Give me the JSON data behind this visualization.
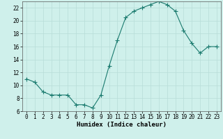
{
  "x": [
    0,
    1,
    2,
    3,
    4,
    5,
    6,
    7,
    8,
    9,
    10,
    11,
    12,
    13,
    14,
    15,
    16,
    17,
    18,
    19,
    20,
    21,
    22,
    23
  ],
  "y": [
    11,
    10.5,
    9,
    8.5,
    8.5,
    8.5,
    7,
    7,
    6.5,
    8.5,
    13,
    17,
    20.5,
    21.5,
    22,
    22.5,
    23,
    22.5,
    21.5,
    18.5,
    16.5,
    15,
    16,
    16
  ],
  "line_color": "#1a7a6e",
  "marker": "+",
  "marker_size": 4.0,
  "bg_color": "#cff0eb",
  "grid_color": "#b8ddd8",
  "xlabel": "Humidex (Indice chaleur)",
  "xlim": [
    -0.5,
    23.5
  ],
  "ylim": [
    6,
    23
  ],
  "yticks": [
    6,
    8,
    10,
    12,
    14,
    16,
    18,
    20,
    22
  ],
  "xticks": [
    0,
    1,
    2,
    3,
    4,
    5,
    6,
    7,
    8,
    9,
    10,
    11,
    12,
    13,
    14,
    15,
    16,
    17,
    18,
    19,
    20,
    21,
    22,
    23
  ],
  "xlabel_fontsize": 6.5,
  "tick_fontsize": 5.5
}
